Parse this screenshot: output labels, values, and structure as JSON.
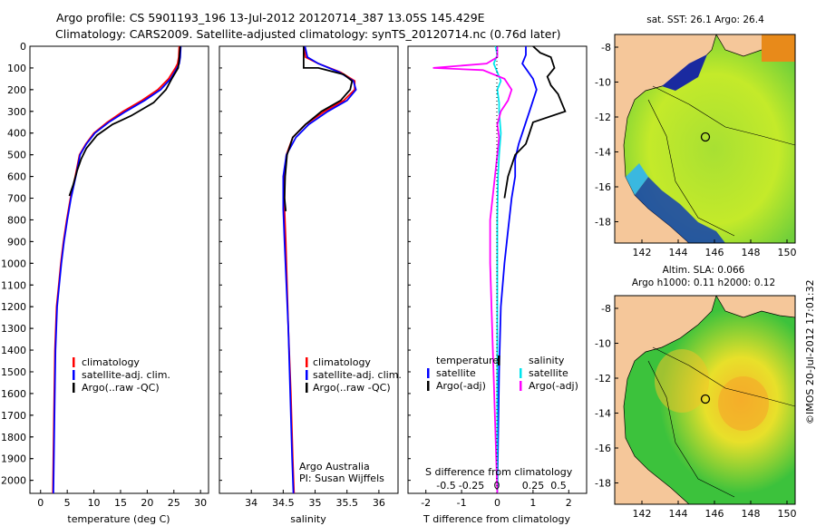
{
  "header": {
    "line1": "Argo profile: CS 5901193_196 13-Jul-2012 20120714_387 13.05S 145.429E",
    "line2": "Climatology: CARS2009. Satellite-adjusted climatology: synTS_20120714.nc (0.76d later)"
  },
  "colors": {
    "climatology": "#ff0000",
    "satellite": "#0000ff",
    "argo": "#000000",
    "sat_s": "#00e5ee",
    "argo_s": "#ff00ff",
    "land": "#f5c79a"
  },
  "chart_data": [
    {
      "type": "line",
      "name": "temperature",
      "xlabel": "temperature (deg C)",
      "ylabel": "",
      "xlim": [
        -2,
        31.5
      ],
      "ylim": [
        2060,
        0
      ],
      "xticks": [
        "0",
        "5",
        "10",
        "15",
        "20",
        "25",
        "30"
      ],
      "yticks": [
        "0",
        "100",
        "200",
        "300",
        "400",
        "500",
        "600",
        "700",
        "800",
        "900",
        "1000",
        "1100",
        "1200",
        "1300",
        "1400",
        "1500",
        "1600",
        "1700",
        "1800",
        "1900",
        "2000"
      ],
      "series": [
        {
          "name": "climatology",
          "color": "#ff0000",
          "x": [
            26.0,
            25.9,
            25.7,
            25.3,
            24.0,
            22.0,
            19.0,
            15.5,
            12.5,
            10.0,
            8.5,
            7.3,
            6.5,
            5.6,
            4.9,
            4.3,
            3.8,
            3.4,
            3.0,
            2.7,
            2.5,
            2.3
          ],
          "y": [
            0,
            50,
            80,
            100,
            150,
            200,
            250,
            300,
            350,
            400,
            450,
            500,
            600,
            700,
            800,
            900,
            1000,
            1100,
            1200,
            1400,
            1700,
            2060
          ]
        },
        {
          "name": "satellite",
          "color": "#0000ff",
          "x": [
            26.3,
            26.2,
            26.0,
            25.6,
            24.4,
            22.5,
            19.5,
            16.0,
            12.8,
            10.2,
            8.6,
            7.4,
            6.6,
            5.7,
            5.0,
            4.4,
            3.9,
            3.5,
            3.1,
            2.8,
            2.6,
            2.4
          ],
          "y": [
            0,
            50,
            80,
            100,
            150,
            200,
            250,
            300,
            350,
            400,
            450,
            500,
            600,
            700,
            800,
            900,
            1000,
            1100,
            1200,
            1400,
            1700,
            2060
          ]
        },
        {
          "name": "Argo",
          "color": "#000000",
          "x": [
            26.2,
            26.1,
            26.0,
            25.8,
            24.6,
            23.5,
            21.2,
            17.0,
            13.5,
            10.6,
            8.6,
            7.6,
            6.9,
            6.1,
            5.4
          ],
          "y": [
            0,
            30,
            60,
            100,
            150,
            200,
            260,
            320,
            360,
            410,
            470,
            520,
            570,
            640,
            690
          ]
        }
      ],
      "legend": {
        "placement": "lower-left",
        "items": [
          "climatology",
          "satellite-adj. clim.",
          "Argo(..raw -QC)"
        ]
      }
    },
    {
      "type": "line",
      "name": "salinity",
      "xlabel": "salinity",
      "xlim": [
        33.5,
        36.3
      ],
      "ylim": [
        2060,
        0
      ],
      "xticks": [
        "34",
        "34.5",
        "35",
        "35.5",
        "36"
      ],
      "series": [
        {
          "name": "climatology",
          "color": "#ff0000",
          "x": [
            34.82,
            34.85,
            35.05,
            35.4,
            35.62,
            35.62,
            35.45,
            35.15,
            34.85,
            34.65,
            34.55,
            34.52,
            34.52,
            34.54,
            34.56,
            34.58,
            34.62,
            34.65,
            34.67
          ],
          "y": [
            0,
            50,
            80,
            120,
            160,
            200,
            250,
            300,
            360,
            420,
            500,
            600,
            750,
            900,
            1100,
            1300,
            1600,
            1900,
            2060
          ]
        },
        {
          "name": "satellite",
          "color": "#0000ff",
          "x": [
            34.84,
            34.88,
            35.05,
            35.38,
            35.6,
            35.64,
            35.5,
            35.2,
            34.9,
            34.7,
            34.55,
            34.5,
            34.5,
            34.52,
            34.55,
            34.58,
            34.61,
            34.64,
            34.66
          ],
          "y": [
            0,
            50,
            80,
            120,
            160,
            200,
            250,
            300,
            360,
            420,
            500,
            600,
            750,
            900,
            1100,
            1300,
            1600,
            1900,
            2060
          ]
        },
        {
          "name": "Argo",
          "color": "#000000",
          "x": [
            34.82,
            34.82,
            35.05,
            35.45,
            35.58,
            35.55,
            35.4,
            35.1,
            34.85,
            34.65,
            34.56,
            34.53,
            34.52,
            34.54
          ],
          "y": [
            0,
            100,
            100,
            130,
            160,
            200,
            250,
            300,
            360,
            420,
            500,
            600,
            700,
            760
          ]
        }
      ],
      "legend": {
        "placement": "lower-left",
        "items": [
          "climatology",
          "satellite-adj. clim.",
          "Argo(..raw -QC)"
        ]
      }
    },
    {
      "type": "line",
      "name": "differences",
      "xlabel": "T difference from climatology",
      "xlabel_top": "S difference from climatology",
      "xlim": [
        -2.5,
        2.5
      ],
      "ylim": [
        2060,
        0
      ],
      "xticks": [
        "-2",
        "-1",
        "0",
        "1",
        "2"
      ],
      "xticks_top": [
        "-0.5",
        "-0.25",
        "0",
        "0.25",
        "0.5"
      ],
      "series": [
        {
          "name": "T satellite",
          "color": "#0000ff",
          "x": [
            0.8,
            0.8,
            0.7,
            1.0,
            1.1,
            1.0,
            0.9,
            0.8,
            0.7,
            0.6,
            0.5,
            0.5,
            0.4,
            0.3,
            0.2,
            0.1,
            0.05,
            0.0
          ],
          "y": [
            0,
            40,
            80,
            150,
            200,
            250,
            300,
            350,
            400,
            450,
            520,
            600,
            700,
            850,
            1000,
            1200,
            1500,
            2060
          ]
        },
        {
          "name": "T Argo",
          "color": "#000000",
          "x": [
            1.0,
            1.2,
            1.5,
            1.6,
            1.4,
            1.5,
            1.7,
            1.8,
            1.9,
            1.0,
            0.9,
            0.8,
            0.5,
            0.3,
            0.2
          ],
          "y": [
            0,
            30,
            50,
            100,
            140,
            180,
            220,
            260,
            300,
            350,
            400,
            450,
            500,
            600,
            700
          ]
        },
        {
          "name": "S satellite",
          "color": "#00e5ee",
          "x": [
            -0.05,
            0.0,
            -0.1,
            0.0,
            0.1,
            0.0,
            0.05,
            0.05,
            0.1,
            0.05,
            0.02,
            0.0,
            0.0,
            0.0
          ],
          "y": [
            0,
            40,
            80,
            120,
            160,
            200,
            260,
            300,
            400,
            500,
            600,
            800,
            1100,
            2060
          ]
        },
        {
          "name": "S Argo",
          "color": "#ff00ff",
          "x": [
            0.0,
            0.0,
            -0.3,
            -1.8,
            -0.4,
            0.2,
            0.4,
            0.3,
            0.1,
            0.0,
            0.05,
            0.0,
            -0.2,
            -0.2,
            0.0
          ],
          "y": [
            0,
            50,
            80,
            100,
            110,
            150,
            200,
            250,
            300,
            360,
            420,
            500,
            800,
            1000,
            2060
          ]
        }
      ],
      "legend": {
        "placement": "lower",
        "items_left": [
          "temperature",
          "satellite",
          "Argo(-adj)"
        ],
        "items_right": [
          "salinity",
          "satellite",
          "Argo(-adj)"
        ]
      }
    }
  ],
  "annotations": {
    "argo_australia": "Argo Australia",
    "pi": "PI: Susan Wijffels"
  },
  "map1": {
    "title": "sat. SST: 26.1  Argo: 26.4",
    "lon_ticks": [
      "142",
      "144",
      "146",
      "148",
      "150"
    ],
    "lat_ticks": [
      "-8",
      "-10",
      "-12",
      "-14",
      "-16",
      "-18"
    ]
  },
  "map2": {
    "title1": "Altim. SLA: 0.066",
    "title2": "Argo h1000: 0.11  h2000: 0.12",
    "lon_ticks": [
      "142",
      "144",
      "146",
      "148",
      "150"
    ],
    "lat_ticks": [
      "-8",
      "-10",
      "-12",
      "-14",
      "-16",
      "-18"
    ]
  },
  "side_label": "©IMOS 20-Jul-2012 17:01:32"
}
